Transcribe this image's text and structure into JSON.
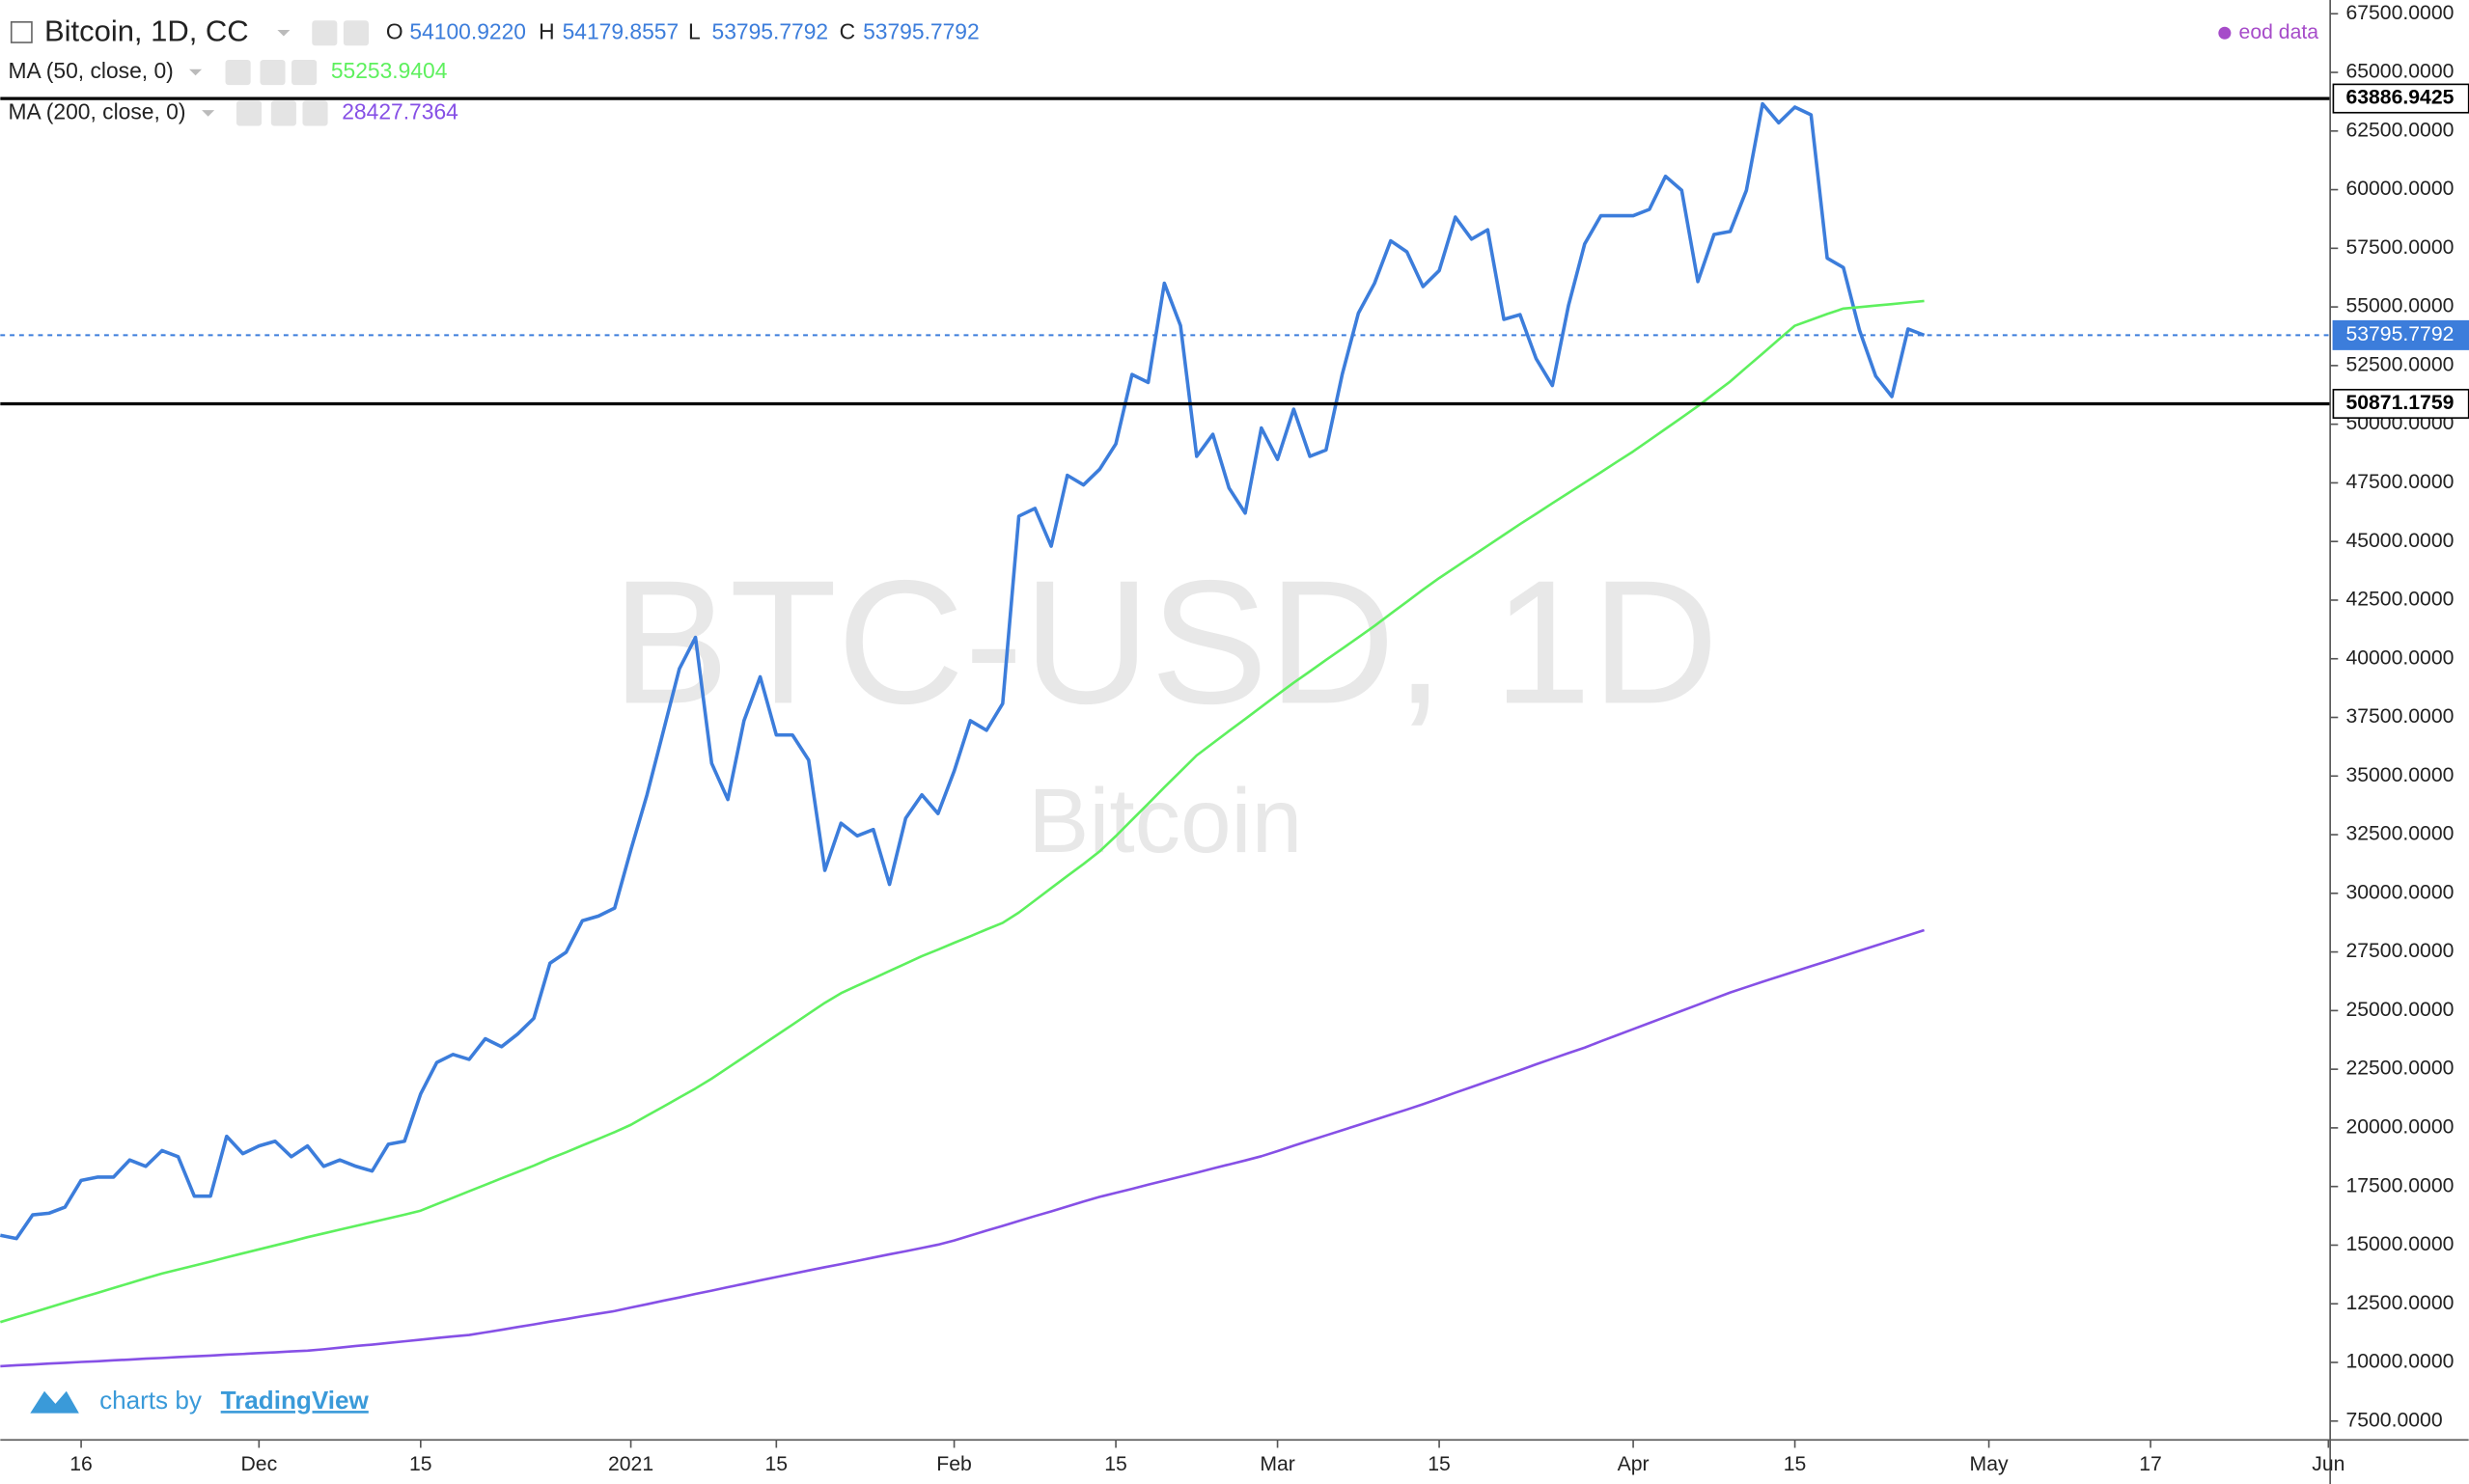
{
  "chart_data": {
    "type": "line",
    "header": {
      "ohlc": [
        {
          "name": "O",
          "value": "54100.9220"
        },
        {
          "name": "H",
          "value": "54179.8557"
        },
        {
          "name": "L",
          "value": "53795.7792"
        },
        {
          "name": "C",
          "value": "53795.7792"
        }
      ],
      "source": "eod data"
    },
    "watermark": {
      "symbol": "BTC-USD, 1D",
      "name": "Bitcoin"
    },
    "branding": {
      "prefix": "charts by",
      "brand": "TradingView"
    },
    "categories": [
      null,
      null,
      null,
      null,
      null,
      "16",
      null,
      null,
      null,
      null,
      null,
      null,
      null,
      null,
      null,
      null,
      "Dec",
      null,
      null,
      null,
      null,
      null,
      null,
      null,
      null,
      null,
      "15",
      null,
      null,
      null,
      null,
      null,
      null,
      null,
      null,
      null,
      null,
      null,
      null,
      "2021",
      null,
      null,
      null,
      null,
      null,
      null,
      null,
      null,
      "15",
      null,
      null,
      null,
      null,
      null,
      null,
      null,
      null,
      null,
      null,
      "Feb",
      null,
      null,
      null,
      null,
      null,
      null,
      null,
      null,
      null,
      "15",
      null,
      null,
      null,
      null,
      null,
      null,
      null,
      null,
      null,
      "Mar",
      null,
      null,
      null,
      null,
      null,
      null,
      null,
      null,
      null,
      "15",
      null,
      null,
      null,
      null,
      null,
      null,
      null,
      null,
      null,
      null,
      null,
      "Apr",
      null,
      null,
      null,
      null,
      null,
      null,
      null,
      null,
      null,
      "15",
      null,
      null,
      null,
      null,
      null,
      null,
      null,
      null,
      null,
      null,
      null,
      "May",
      null,
      null,
      null,
      null,
      null,
      null,
      null,
      null,
      null,
      "17",
      null,
      null,
      null,
      null,
      null,
      null,
      null,
      null,
      null,
      null,
      "Jun"
    ],
    "series": [
      {
        "name": "Bitcoin, 1D, CC",
        "color": "#3c7ddb",
        "values": [
          15420,
          15280,
          16290,
          16360,
          16620,
          17760,
          17900,
          17900,
          18630,
          18360,
          19030,
          18770,
          17090,
          17090,
          19640,
          18900,
          19230,
          19430,
          18770,
          19230,
          18360,
          18630,
          18360,
          18160,
          19300,
          19430,
          21450,
          22790,
          23130,
          22920,
          23800,
          23460,
          24000,
          24670,
          27020,
          27490,
          28830,
          29030,
          29370,
          31850,
          34200,
          36880,
          39570,
          40910,
          35540,
          34000,
          37360,
          39230,
          36750,
          36750,
          35680,
          30980,
          32990,
          32450,
          32720,
          30380,
          33200,
          34200,
          33400,
          35210,
          37360,
          36950,
          38090,
          46080,
          46410,
          44800,
          47820,
          47410,
          48080,
          49160,
          52120,
          51780,
          56010,
          54200,
          48630,
          49570,
          47280,
          46210,
          49840,
          48500,
          50640,
          48630,
          48900,
          52120,
          54730,
          56010,
          57820,
          57350,
          55870,
          56550,
          58830,
          57890,
          58290,
          54470,
          54670,
          52790,
          51650,
          55070,
          57690,
          58890,
          58890,
          58890,
          59160,
          60570,
          59970,
          56080,
          58090,
          58220,
          59970,
          63660,
          62850,
          63520,
          63190,
          57080,
          56680,
          54000,
          52050,
          51180,
          54060,
          53795.7792,
          null,
          null,
          null,
          null,
          null,
          null,
          null,
          null,
          null,
          null,
          null,
          null,
          null,
          null,
          null,
          null,
          null,
          null,
          null,
          null,
          null,
          null,
          null,
          null,
          null
        ]
      },
      {
        "name": "MA (50, close, 0)",
        "color": "#5ef05e",
        "legend_value": 55253.9404,
        "values": [
          11720,
          11930,
          12130,
          12340,
          12550,
          12760,
          12960,
          13170,
          13380,
          13590,
          13790,
          13960,
          14130,
          14300,
          14480,
          14650,
          14820,
          14990,
          15160,
          15340,
          15500,
          15660,
          15820,
          15980,
          16140,
          16300,
          16470,
          16750,
          17020,
          17300,
          17570,
          17850,
          18120,
          18390,
          18690,
          18960,
          19250,
          19530,
          19820,
          20130,
          20520,
          20900,
          21290,
          21680,
          22100,
          22560,
          23020,
          23480,
          23940,
          24400,
          24870,
          25330,
          25740,
          26060,
          26370,
          26690,
          27000,
          27320,
          27600,
          27890,
          28170,
          28460,
          28740,
          29180,
          29700,
          30220,
          30740,
          31250,
          31790,
          32440,
          33130,
          33820,
          34520,
          35200,
          35880,
          36400,
          36920,
          37430,
          37950,
          38470,
          38980,
          39460,
          39950,
          40430,
          40910,
          41400,
          41920,
          42430,
          42950,
          43440,
          43900,
          44360,
          44820,
          45280,
          45740,
          46180,
          46630,
          47070,
          47510,
          47950,
          48400,
          48840,
          49320,
          49800,
          50280,
          50770,
          51300,
          51820,
          52420,
          53010,
          53610,
          54200,
          54450,
          54700,
          54930,
          54990,
          55060,
          55120,
          55190,
          55253.9404,
          null,
          null,
          null,
          null,
          null,
          null,
          null,
          null,
          null,
          null,
          null,
          null,
          null,
          null,
          null,
          null,
          null,
          null,
          null,
          null,
          null,
          null,
          null,
          null,
          null
        ]
      },
      {
        "name": "MA (200, close, 0)",
        "color": "#8650e6",
        "legend_value": 28427.7364,
        "values": [
          9840,
          9880,
          9910,
          9950,
          9980,
          10020,
          10050,
          10090,
          10120,
          10160,
          10190,
          10230,
          10260,
          10290,
          10330,
          10360,
          10400,
          10430,
          10470,
          10500,
          10560,
          10630,
          10700,
          10760,
          10830,
          10900,
          10970,
          11040,
          11110,
          11170,
          11280,
          11390,
          11510,
          11620,
          11740,
          11850,
          11970,
          12080,
          12190,
          12340,
          12480,
          12630,
          12770,
          12920,
          13060,
          13210,
          13350,
          13500,
          13640,
          13780,
          13920,
          14060,
          14190,
          14330,
          14470,
          14610,
          14740,
          14880,
          15020,
          15200,
          15410,
          15620,
          15820,
          16030,
          16240,
          16440,
          16650,
          16860,
          17060,
          17230,
          17400,
          17580,
          17750,
          17920,
          18090,
          18270,
          18440,
          18610,
          18790,
          19010,
          19240,
          19460,
          19680,
          19900,
          20120,
          20340,
          20560,
          20780,
          21010,
          21250,
          21500,
          21740,
          21980,
          22220,
          22460,
          22710,
          22950,
          23190,
          23420,
          23690,
          23950,
          24210,
          24470,
          24730,
          24990,
          25250,
          25510,
          25770,
          26000,
          26230,
          26450,
          26670,
          26890,
          27110,
          27330,
          27550,
          27770,
          27990,
          28210,
          28427.7364,
          null,
          null,
          null,
          null,
          null,
          null,
          null,
          null,
          null,
          null,
          null,
          null,
          null,
          null,
          null,
          null,
          null,
          null,
          null,
          null,
          null,
          null,
          null,
          null,
          null
        ]
      }
    ],
    "price_lines": [
      {
        "value": 63886.9425,
        "color": "#000000",
        "style": "solid"
      },
      {
        "value": 50871.1759,
        "color": "#000000",
        "style": "solid"
      },
      {
        "value": 53795.7792,
        "color": "#3c7ddb",
        "style": "dotted"
      }
    ],
    "ylim": [
      6695,
      68086
    ],
    "yticks": [
      {
        "value": 7500,
        "label": "7500.0000"
      },
      {
        "value": 10000,
        "label": "10000.0000"
      },
      {
        "value": 12500,
        "label": "12500.0000"
      },
      {
        "value": 15000,
        "label": "15000.0000"
      },
      {
        "value": 17500,
        "label": "17500.0000"
      },
      {
        "value": 20000,
        "label": "20000.0000"
      },
      {
        "value": 22500,
        "label": "22500.0000"
      },
      {
        "value": 25000,
        "label": "25000.0000"
      },
      {
        "value": 27500,
        "label": "27500.0000"
      },
      {
        "value": 30000,
        "label": "30000.0000"
      },
      {
        "value": 32500,
        "label": "32500.0000"
      },
      {
        "value": 35000,
        "label": "35000.0000"
      },
      {
        "value": 37500,
        "label": "37500.0000"
      },
      {
        "value": 40000,
        "label": "40000.0000"
      },
      {
        "value": 42500,
        "label": "42500.0000"
      },
      {
        "value": 45000,
        "label": "45000.0000"
      },
      {
        "value": 47500,
        "label": "47500.0000"
      },
      {
        "value": 50000,
        "label": "50000.0000"
      },
      {
        "value": 52500,
        "label": "52500.0000"
      },
      {
        "value": 55000,
        "label": "55000.0000"
      },
      {
        "value": 57500,
        "label": "57500.0000"
      },
      {
        "value": 60000,
        "label": "60000.0000"
      },
      {
        "value": 62500,
        "label": "62500.0000"
      },
      {
        "value": 65000,
        "label": "65000.0000"
      },
      {
        "value": 67500,
        "label": "67500.0000"
      }
    ],
    "grid": false
  }
}
